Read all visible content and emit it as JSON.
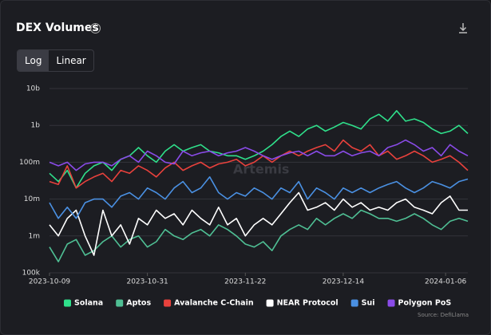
{
  "header": {
    "title": "DEX Volumes",
    "scale_options": [
      "Log",
      "Linear"
    ],
    "selected_scale": "Log"
  },
  "chart_data": {
    "type": "line",
    "log_scale": true,
    "grid": true,
    "watermark": "Artemis",
    "source": "Source: DefiLlama",
    "legend": "bottom",
    "x": [
      "2023-10-09",
      "2023-10-11",
      "2023-10-13",
      "2023-10-15",
      "2023-10-17",
      "2023-10-19",
      "2023-10-21",
      "2023-10-23",
      "2023-10-25",
      "2023-10-27",
      "2023-10-29",
      "2023-10-31",
      "2023-11-02",
      "2023-11-04",
      "2023-11-06",
      "2023-11-08",
      "2023-11-10",
      "2023-11-12",
      "2023-11-14",
      "2023-11-16",
      "2023-11-18",
      "2023-11-20",
      "2023-11-22",
      "2023-11-24",
      "2023-11-26",
      "2023-11-28",
      "2023-11-30",
      "2023-12-02",
      "2023-12-04",
      "2023-12-06",
      "2023-12-08",
      "2023-12-10",
      "2023-12-12",
      "2023-12-14",
      "2023-12-16",
      "2023-12-18",
      "2023-12-20",
      "2023-12-22",
      "2023-12-24",
      "2023-12-26",
      "2023-12-28",
      "2023-12-30",
      "2024-01-01",
      "2024-01-03",
      "2024-01-05",
      "2024-01-07",
      "2024-01-09",
      "2024-01-11"
    ],
    "xlim": [
      "2023-10-09",
      "2024-01-11"
    ],
    "xticks": [
      "2023-10-09",
      "2023-10-31",
      "2023-11-22",
      "2023-12-14",
      "2024-01-06"
    ],
    "ylim": [
      100000.0,
      10000000000.0
    ],
    "yticks": [
      {
        "value": 100000.0,
        "label": "100k"
      },
      {
        "value": 1000000.0,
        "label": "1m"
      },
      {
        "value": 10000000.0,
        "label": "10m"
      },
      {
        "value": 100000000.0,
        "label": "100m"
      },
      {
        "value": 1000000000.0,
        "label": "1b"
      },
      {
        "value": 10000000000.0,
        "label": "10b"
      }
    ],
    "series": [
      {
        "name": "Solana",
        "color": "#2fe08b",
        "values": [
          50000000.0,
          30000000.0,
          60000000.0,
          20000000.0,
          50000000.0,
          80000000.0,
          100000000.0,
          60000000.0,
          120000000.0,
          150000000.0,
          250000000.0,
          150000000.0,
          100000000.0,
          200000000.0,
          300000000.0,
          200000000.0,
          250000000.0,
          300000000.0,
          200000000.0,
          180000000.0,
          150000000.0,
          150000000.0,
          120000000.0,
          150000000.0,
          200000000.0,
          300000000.0,
          500000000.0,
          700000000.0,
          500000000.0,
          800000000.0,
          1000000000.0,
          700000000.0,
          900000000.0,
          1200000000.0,
          1000000000.0,
          800000000.0,
          1500000000.0,
          2000000000.0,
          1300000000.0,
          2500000000.0,
          1300000000.0,
          1500000000.0,
          1200000000.0,
          800000000.0,
          600000000.0,
          700000000.0,
          1000000000.0,
          600000000.0
        ]
      },
      {
        "name": "Aptos",
        "color": "#4fbf94",
        "values": [
          500000.0,
          200000.0,
          600000.0,
          800000.0,
          300000.0,
          400000.0,
          700000.0,
          1000000.0,
          500000.0,
          800000.0,
          1000000.0,
          500000.0,
          700000.0,
          1500000.0,
          1000000.0,
          800000.0,
          1200000.0,
          1500000.0,
          1000000.0,
          2000000.0,
          1500000.0,
          1000000.0,
          600000.0,
          500000.0,
          700000.0,
          400000.0,
          1000000.0,
          1500000.0,
          2000000.0,
          1500000.0,
          3000000.0,
          2000000.0,
          3000000.0,
          4000000.0,
          3000000.0,
          5000000.0,
          4000000.0,
          3000000.0,
          3000000.0,
          2500000.0,
          3000000.0,
          4000000.0,
          3000000.0,
          2000000.0,
          1500000.0,
          2500000.0,
          3000000.0,
          2500000.0
        ]
      },
      {
        "name": "Avalanche C-Chain",
        "color": "#e8413c",
        "values": [
          30000000.0,
          25000000.0,
          80000000.0,
          20000000.0,
          30000000.0,
          40000000.0,
          50000000.0,
          30000000.0,
          60000000.0,
          50000000.0,
          80000000.0,
          60000000.0,
          40000000.0,
          70000000.0,
          100000000.0,
          60000000.0,
          80000000.0,
          100000000.0,
          70000000.0,
          90000000.0,
          100000000.0,
          120000000.0,
          80000000.0,
          100000000.0,
          150000000.0,
          100000000.0,
          150000000.0,
          200000000.0,
          150000000.0,
          200000000.0,
          250000000.0,
          300000000.0,
          200000000.0,
          400000000.0,
          250000000.0,
          200000000.0,
          300000000.0,
          150000000.0,
          200000000.0,
          120000000.0,
          150000000.0,
          200000000.0,
          150000000.0,
          100000000.0,
          120000000.0,
          150000000.0,
          100000000.0,
          60000000.0
        ]
      },
      {
        "name": "NEAR Protocol",
        "color": "#ffffff",
        "values": [
          2000000.0,
          1000000.0,
          3000000.0,
          5000000.0,
          1000000.0,
          300000.0,
          5000000.0,
          1000000.0,
          2000000.0,
          600000.0,
          3000000.0,
          2000000.0,
          5000000.0,
          3000000.0,
          4000000.0,
          2000000.0,
          5000000.0,
          3000000.0,
          2000000.0,
          6000000.0,
          2000000.0,
          3000000.0,
          1000000.0,
          2000000.0,
          3000000.0,
          2000000.0,
          4000000.0,
          8000000.0,
          15000000.0,
          5000000.0,
          6000000.0,
          8000000.0,
          5000000.0,
          10000000.0,
          6000000.0,
          8000000.0,
          5000000.0,
          6000000.0,
          5000000.0,
          8000000.0,
          10000000.0,
          6000000.0,
          5000000.0,
          4000000.0,
          8000000.0,
          12000000.0,
          5000000.0,
          5000000.0
        ]
      },
      {
        "name": "Sui",
        "color": "#4a90e2",
        "values": [
          8000000.0,
          3000000.0,
          6000000.0,
          3000000.0,
          8000000.0,
          10000000.0,
          10000000.0,
          6000000.0,
          12000000.0,
          15000000.0,
          10000000.0,
          20000000.0,
          15000000.0,
          10000000.0,
          20000000.0,
          30000000.0,
          15000000.0,
          20000000.0,
          40000000.0,
          15000000.0,
          10000000.0,
          15000000.0,
          12000000.0,
          20000000.0,
          15000000.0,
          10000000.0,
          20000000.0,
          15000000.0,
          30000000.0,
          10000000.0,
          20000000.0,
          15000000.0,
          10000000.0,
          20000000.0,
          15000000.0,
          20000000.0,
          15000000.0,
          20000000.0,
          25000000.0,
          30000000.0,
          20000000.0,
          15000000.0,
          20000000.0,
          30000000.0,
          25000000.0,
          20000000.0,
          30000000.0,
          35000000.0
        ]
      },
      {
        "name": "Polygon PoS",
        "color": "#8a4be8",
        "values": [
          100000000.0,
          80000000.0,
          100000000.0,
          60000000.0,
          90000000.0,
          100000000.0,
          100000000.0,
          80000000.0,
          120000000.0,
          150000000.0,
          100000000.0,
          200000000.0,
          150000000.0,
          100000000.0,
          90000000.0,
          200000000.0,
          150000000.0,
          180000000.0,
          200000000.0,
          150000000.0,
          180000000.0,
          200000000.0,
          250000000.0,
          200000000.0,
          150000000.0,
          120000000.0,
          150000000.0,
          180000000.0,
          200000000.0,
          150000000.0,
          200000000.0,
          150000000.0,
          150000000.0,
          200000000.0,
          150000000.0,
          180000000.0,
          200000000.0,
          150000000.0,
          250000000.0,
          300000000.0,
          400000000.0,
          300000000.0,
          200000000.0,
          250000000.0,
          150000000.0,
          300000000.0,
          200000000.0,
          150000000.0
        ]
      }
    ]
  }
}
